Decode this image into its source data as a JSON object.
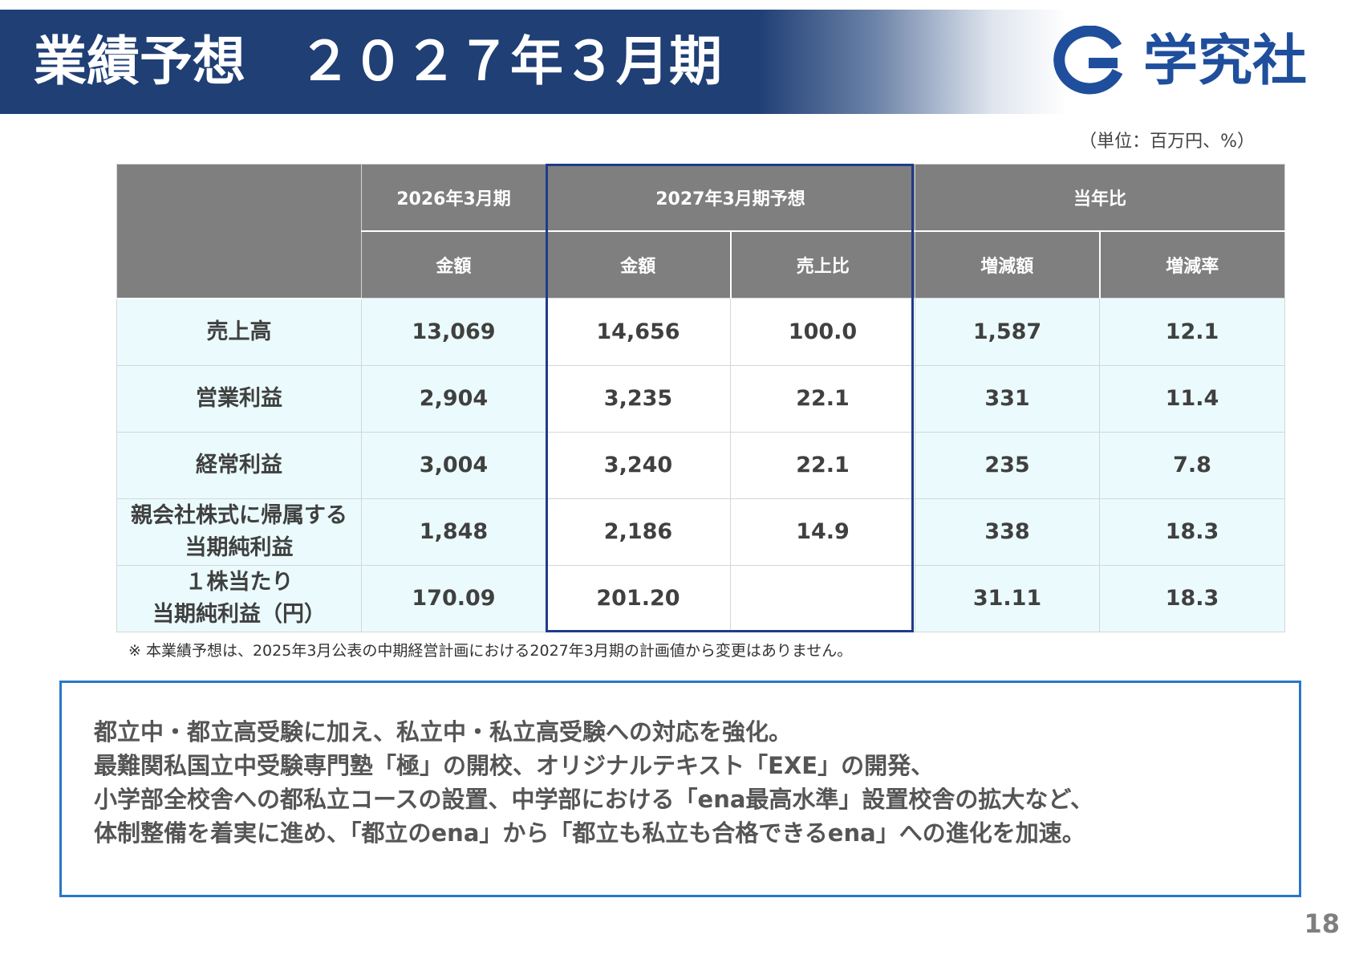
{
  "header": {
    "title": "業績予想　２０２７年３月期",
    "logo_text": "学究社",
    "logo_icon": "gakkyusha-g-logo-icon"
  },
  "unit_note": "（単位：百万円、%）",
  "table": {
    "group_headers": [
      "2026年3月期",
      "2027年3月期予想",
      "当年比"
    ],
    "sub_headers": [
      "金額",
      "金額",
      "売上比",
      "増減額",
      "増減率"
    ],
    "rows": [
      {
        "label": [
          "売上高"
        ],
        "cells": [
          "13,069",
          "14,656",
          "100.0",
          "1,587",
          "12.1"
        ]
      },
      {
        "label": [
          "営業利益"
        ],
        "cells": [
          "2,904",
          "3,235",
          "22.1",
          "331",
          "11.4"
        ]
      },
      {
        "label": [
          "経常利益"
        ],
        "cells": [
          "3,004",
          "3,240",
          "22.1",
          "235",
          "7.8"
        ]
      },
      {
        "label": [
          "親会社株式に帰属する",
          "当期純利益"
        ],
        "cells": [
          "1,848",
          "2,186",
          "14.9",
          "338",
          "18.3"
        ]
      },
      {
        "label": [
          "１株当たり",
          "当期純利益（円）"
        ],
        "cells": [
          "170.09",
          "201.20",
          "",
          "31.11",
          "18.3"
        ]
      }
    ]
  },
  "footnote": "※ 本業績予想は、2025年3月公表の中期経営計画における2027年3月期の計画値から変更はありません。",
  "callout": {
    "lines": [
      "都立中・都立高受験に加え、私立中・私立高受験への対応を強化。",
      "最難関私国立中受験専門塾「極」の開校、オリジナルテキスト「EXE」の開発、",
      "小学部全校舎への都私立コースの設置、中学部における「ena最高水準」設置校舎の拡大など、",
      "体制整備を着実に進め、「都立のena」から「都立も私立も合格できるena」への進化を加速。"
    ]
  },
  "page_number": "18",
  "colors": {
    "header_navy": "#1f3f75",
    "table_header_gray": "#7f7f7f",
    "row_cyan": "#ebfbfd",
    "highlight_border": "#1f3b8c",
    "callout_border": "#2a76c6",
    "logo_blue": "#1f4e9c"
  }
}
